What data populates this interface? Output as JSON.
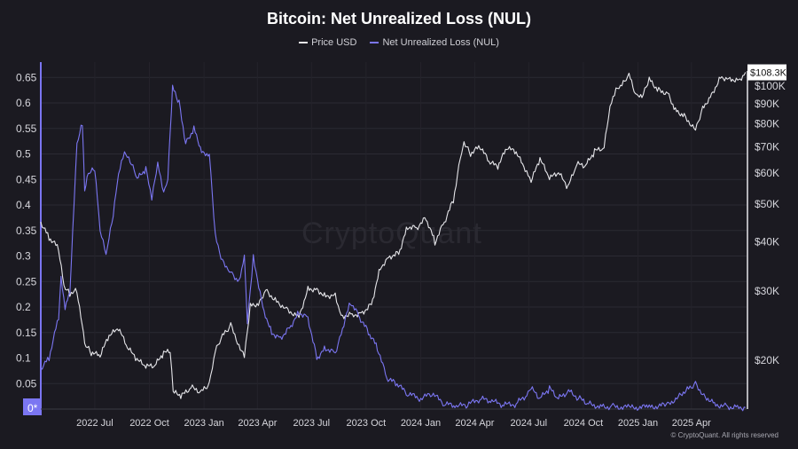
{
  "chart_data": {
    "type": "line",
    "title": "Bitcoin: Net Unrealized Loss (NUL)",
    "legend_position": "top-center",
    "grid": true,
    "colors": {
      "price": "#e6e6ea",
      "nul": "#7b76f2",
      "background": "#1b1a21"
    },
    "x_ticks": [
      "2022 Jul",
      "2022 Oct",
      "2023 Jan",
      "2023 Apr",
      "2023 Jul",
      "2023 Oct",
      "2024 Jan",
      "2024 Apr",
      "2024 Jul",
      "2024 Oct",
      "2025 Jan",
      "2025 Apr"
    ],
    "y_left": {
      "ticks": [
        "0.65",
        "0.6",
        "0.55",
        "0.5",
        "0.45",
        "0.4",
        "0.35",
        "0.3",
        "0.25",
        "0.2",
        "0.15",
        "0.1",
        "0.05"
      ],
      "zero_label": "0*",
      "ylim": [
        0,
        0.68
      ]
    },
    "y_right": {
      "scale": "log",
      "ticks": [
        "$100K",
        "$90K",
        "$80K",
        "$70K",
        "$60K",
        "$50K",
        "$40K",
        "$30K",
        "$20K"
      ],
      "ylim": [
        15000,
        115000
      ],
      "last_value_label": "$108.3K"
    },
    "series": [
      {
        "name": "Price USD",
        "x": [
          "2022-04-01",
          "2022-04-15",
          "2022-05-01",
          "2022-05-10",
          "2022-05-20",
          "2022-06-01",
          "2022-06-14",
          "2022-06-25",
          "2022-07-10",
          "2022-07-25",
          "2022-08-10",
          "2022-08-25",
          "2022-09-10",
          "2022-09-25",
          "2022-10-10",
          "2022-10-25",
          "2022-11-05",
          "2022-11-10",
          "2022-11-25",
          "2022-12-10",
          "2022-12-28",
          "2023-01-10",
          "2023-01-20",
          "2023-02-01",
          "2023-02-15",
          "2023-03-10",
          "2023-03-20",
          "2023-04-05",
          "2023-04-15",
          "2023-05-01",
          "2023-05-20",
          "2023-06-10",
          "2023-06-25",
          "2023-07-10",
          "2023-07-25",
          "2023-08-10",
          "2023-08-20",
          "2023-09-10",
          "2023-09-25",
          "2023-10-10",
          "2023-10-25",
          "2023-11-10",
          "2023-11-25",
          "2023-12-10",
          "2023-12-25",
          "2024-01-10",
          "2024-01-25",
          "2024-02-10",
          "2024-02-25",
          "2024-03-10",
          "2024-03-14",
          "2024-03-25",
          "2024-04-10",
          "2024-04-25",
          "2024-05-10",
          "2024-05-25",
          "2024-06-10",
          "2024-06-25",
          "2024-07-05",
          "2024-07-20",
          "2024-08-05",
          "2024-08-20",
          "2024-09-05",
          "2024-09-20",
          "2024-10-05",
          "2024-10-20",
          "2024-11-05",
          "2024-11-15",
          "2024-11-25",
          "2024-12-05",
          "2024-12-17",
          "2024-12-30",
          "2025-01-10",
          "2025-01-20",
          "2025-02-05",
          "2025-02-20",
          "2025-03-05",
          "2025-03-20",
          "2025-04-08",
          "2025-04-20",
          "2025-05-05",
          "2025-05-20",
          "2025-06-05",
          "2025-06-20",
          "2025-07-01"
        ],
        "values": [
          45000,
          41000,
          38500,
          31000,
          29500,
          30000,
          22000,
          20800,
          20500,
          23000,
          24000,
          21500,
          20000,
          19200,
          19300,
          20800,
          21000,
          16500,
          16200,
          17000,
          16600,
          17300,
          21000,
          23000,
          24500,
          20300,
          27500,
          28000,
          30200,
          28500,
          27000,
          25800,
          30500,
          30300,
          29200,
          29400,
          26000,
          26100,
          26500,
          27800,
          34500,
          36800,
          37500,
          43800,
          43500,
          46000,
          40000,
          45000,
          51000,
          68500,
          72000,
          67000,
          70000,
          64000,
          62000,
          69500,
          67500,
          61000,
          57000,
          65000,
          58000,
          60000,
          55000,
          63000,
          62500,
          68000,
          69500,
          88000,
          97000,
          100000,
          106500,
          93500,
          95000,
          104000,
          97500,
          96000,
          87000,
          84000,
          77500,
          88000,
          95000,
          105500,
          104500,
          103500,
          108300
        ]
      },
      {
        "name": "Net Unrealized Loss (NUL)",
        "x": [
          "2022-04-01",
          "2022-04-15",
          "2022-05-01",
          "2022-05-05",
          "2022-05-12",
          "2022-05-20",
          "2022-06-01",
          "2022-06-10",
          "2022-06-14",
          "2022-06-20",
          "2022-07-01",
          "2022-07-10",
          "2022-07-20",
          "2022-08-01",
          "2022-08-10",
          "2022-08-20",
          "2022-09-01",
          "2022-09-10",
          "2022-09-25",
          "2022-10-05",
          "2022-10-15",
          "2022-10-25",
          "2022-11-01",
          "2022-11-09",
          "2022-11-20",
          "2022-12-01",
          "2022-12-15",
          "2022-12-30",
          "2023-01-10",
          "2023-01-20",
          "2023-02-01",
          "2023-02-15",
          "2023-03-01",
          "2023-03-10",
          "2023-03-15",
          "2023-03-25",
          "2023-04-10",
          "2023-04-25",
          "2023-05-10",
          "2023-05-25",
          "2023-06-10",
          "2023-06-25",
          "2023-07-10",
          "2023-07-25",
          "2023-08-10",
          "2023-08-20",
          "2023-09-05",
          "2023-09-20",
          "2023-10-05",
          "2023-10-20",
          "2023-11-05",
          "2023-11-20",
          "2023-12-10",
          "2024-01-01",
          "2024-01-20",
          "2024-02-10",
          "2024-03-01",
          "2024-03-20",
          "2024-04-10",
          "2024-04-30",
          "2024-05-20",
          "2024-06-10",
          "2024-06-30",
          "2024-07-05",
          "2024-07-20",
          "2024-08-05",
          "2024-08-20",
          "2024-09-06",
          "2024-09-25",
          "2024-10-10",
          "2024-10-30",
          "2024-11-20",
          "2024-12-20",
          "2025-01-20",
          "2025-02-20",
          "2025-03-10",
          "2025-03-25",
          "2025-04-08",
          "2025-04-20",
          "2025-05-10",
          "2025-05-30",
          "2025-06-20",
          "2025-07-01"
        ],
        "values": [
          0.08,
          0.1,
          0.18,
          0.26,
          0.2,
          0.23,
          0.52,
          0.56,
          0.43,
          0.46,
          0.47,
          0.35,
          0.3,
          0.38,
          0.46,
          0.5,
          0.48,
          0.45,
          0.47,
          0.41,
          0.48,
          0.42,
          0.45,
          0.63,
          0.6,
          0.52,
          0.55,
          0.5,
          0.5,
          0.34,
          0.29,
          0.27,
          0.25,
          0.3,
          0.17,
          0.3,
          0.2,
          0.15,
          0.14,
          0.16,
          0.19,
          0.18,
          0.1,
          0.12,
          0.11,
          0.15,
          0.21,
          0.18,
          0.15,
          0.12,
          0.06,
          0.05,
          0.03,
          0.02,
          0.03,
          0.01,
          0.005,
          0.008,
          0.02,
          0.015,
          0.008,
          0.01,
          0.03,
          0.04,
          0.02,
          0.04,
          0.02,
          0.035,
          0.02,
          0.01,
          0.005,
          0.005,
          0.003,
          0.004,
          0.008,
          0.025,
          0.04,
          0.05,
          0.03,
          0.01,
          0.005,
          0.004,
          0.003
        ]
      }
    ]
  },
  "watermark": "CryptoQuant",
  "copyright": "© CryptoQuant. All rights reserved"
}
